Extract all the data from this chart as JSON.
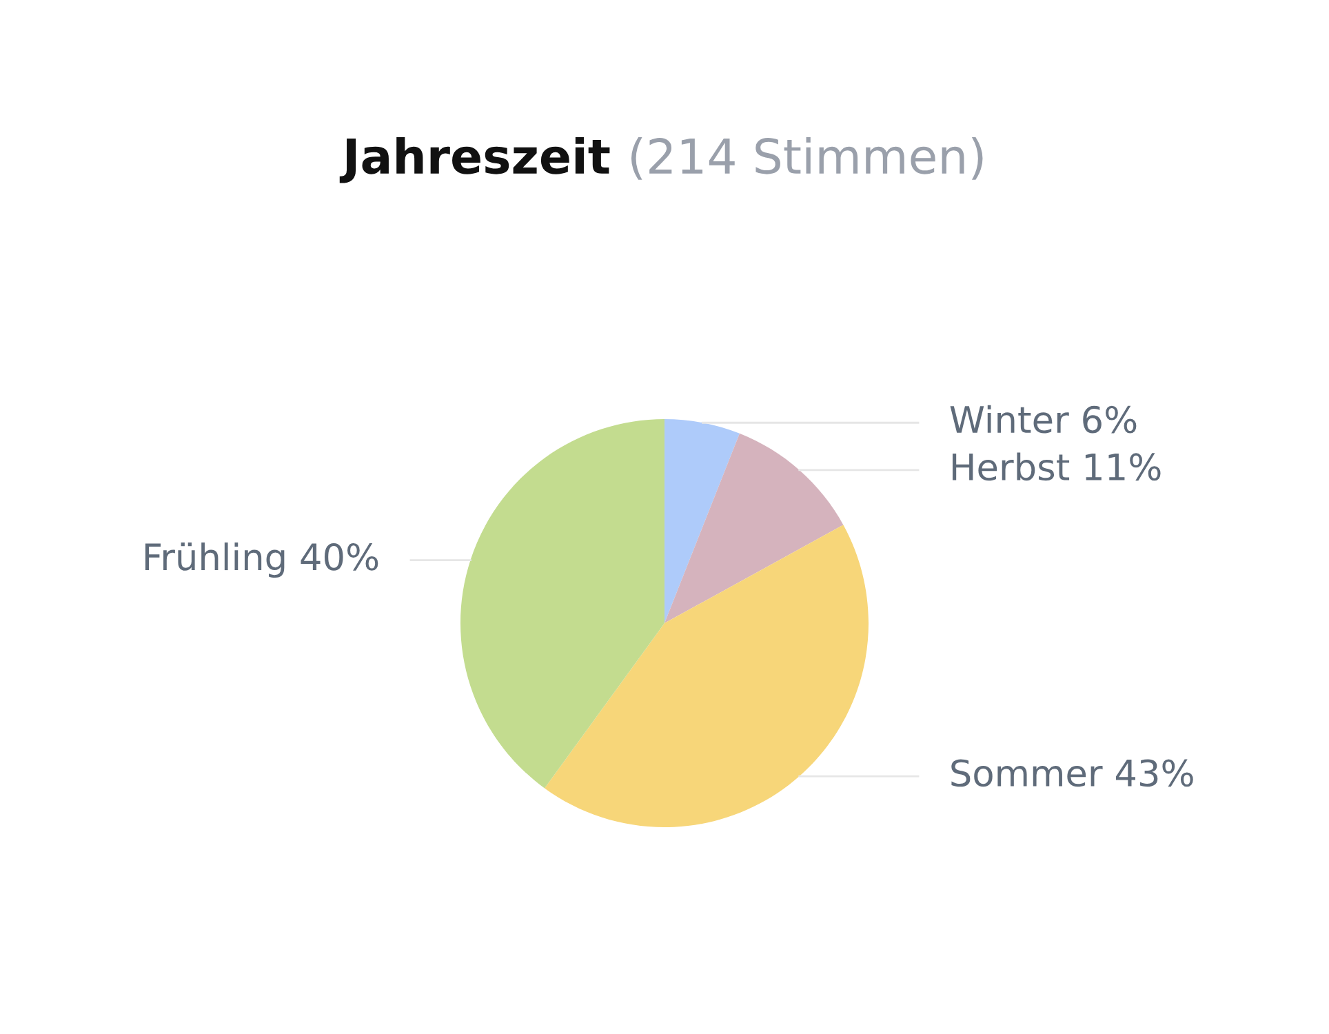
{
  "chart_data": {
    "type": "pie",
    "title": "Jahreszeit",
    "subtitle": "(214 Stimmen)",
    "categories": [
      "Winter",
      "Herbst",
      "Sommer",
      "Frühling"
    ],
    "values": [
      6,
      11,
      43,
      40
    ],
    "value_labels": [
      "6%",
      "11%",
      "43%",
      "40%"
    ],
    "colors": [
      "#aecbfa",
      "#d5b3bd",
      "#f7d679",
      "#c3dc8f"
    ]
  }
}
